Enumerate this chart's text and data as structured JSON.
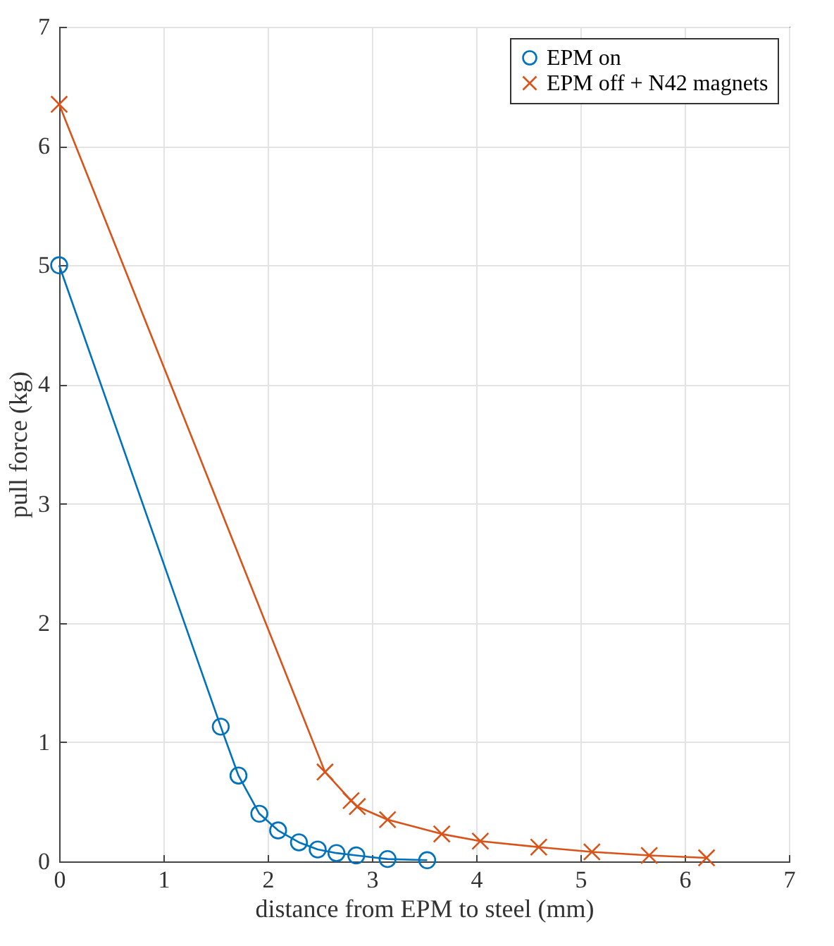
{
  "chart_data": {
    "type": "line",
    "xlabel": "distance from EPM to steel (mm)",
    "ylabel": "pull force (kg)",
    "xlim": [
      0,
      7
    ],
    "xticks": [
      0,
      1,
      2,
      3,
      4,
      5,
      6,
      7
    ],
    "ylim": [
      0,
      7
    ],
    "yticks": [
      0,
      1,
      2,
      3,
      4,
      5,
      6,
      7
    ],
    "grid": true,
    "legend": "top right",
    "series": [
      {
        "name": "EPM on",
        "color": "#0072bd",
        "marker": "circle",
        "x": [
          0,
          1.55,
          1.72,
          1.92,
          2.1,
          2.3,
          2.48,
          2.66,
          2.85,
          3.15,
          3.53
        ],
        "values": [
          5.0,
          1.13,
          0.72,
          0.4,
          0.26,
          0.16,
          0.1,
          0.07,
          0.05,
          0.02,
          0.01
        ]
      },
      {
        "name": "EPM off + N42 magnets",
        "color": "#d95319",
        "marker": "cross",
        "x": [
          0,
          2.55,
          2.8,
          2.86,
          3.15,
          3.67,
          4.04,
          4.6,
          5.11,
          5.66,
          6.21
        ],
        "values": [
          6.35,
          0.75,
          0.51,
          0.46,
          0.35,
          0.23,
          0.17,
          0.12,
          0.08,
          0.05,
          0.03
        ]
      }
    ]
  }
}
